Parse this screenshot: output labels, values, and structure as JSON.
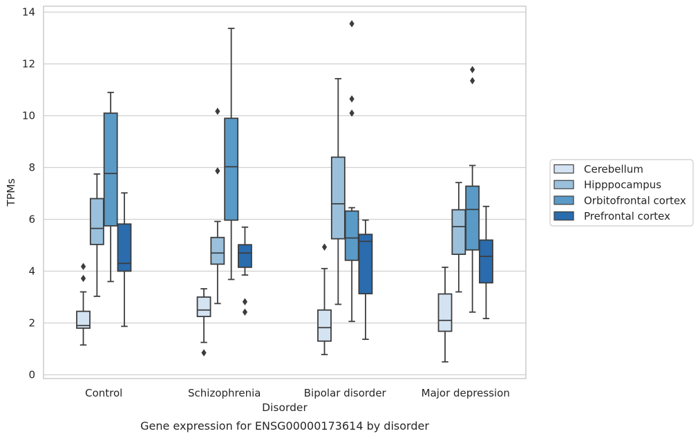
{
  "chart_data": {
    "type": "box",
    "caption": "Gene expression for ENSG00000173614 by disorder",
    "xlabel": "Disorder",
    "ylabel": "TPMs",
    "ylim": [
      -0.1,
      14.2
    ],
    "yticks": [
      0,
      2,
      4,
      6,
      8,
      10,
      12,
      14
    ],
    "grid": "horizontal",
    "legend_position": "right",
    "categories": [
      "Control",
      "Schizophrenia",
      "Bipolar disorder",
      "Major depression"
    ],
    "series": [
      {
        "name": "Cerebellum",
        "color": "#d4e3f1",
        "boxes": [
          {
            "whislo": 1.15,
            "q1": 1.8,
            "med": 1.9,
            "q3": 2.45,
            "whishi": 3.2,
            "fliers": [
              3.72,
              4.18
            ]
          },
          {
            "whislo": 1.25,
            "q1": 2.25,
            "med": 2.5,
            "q3": 3.0,
            "whishi": 3.32,
            "fliers": [
              0.85
            ]
          },
          {
            "whislo": 0.78,
            "q1": 1.3,
            "med": 1.82,
            "q3": 2.5,
            "whishi": 4.1,
            "fliers": [
              4.93
            ]
          },
          {
            "whislo": 0.5,
            "q1": 1.68,
            "med": 2.1,
            "q3": 3.12,
            "whishi": 4.15,
            "fliers": []
          }
        ]
      },
      {
        "name": "Hipppocampus",
        "color": "#9ac0dc",
        "boxes": [
          {
            "whislo": 3.03,
            "q1": 5.03,
            "med": 5.65,
            "q3": 6.8,
            "whishi": 7.75,
            "fliers": []
          },
          {
            "whislo": 2.75,
            "q1": 4.27,
            "med": 4.7,
            "q3": 5.3,
            "whishi": 5.92,
            "fliers": [
              7.87,
              10.17
            ]
          },
          {
            "whislo": 2.72,
            "q1": 5.25,
            "med": 6.6,
            "q3": 8.4,
            "whishi": 11.43,
            "fliers": []
          },
          {
            "whislo": 3.2,
            "q1": 4.65,
            "med": 5.72,
            "q3": 6.37,
            "whishi": 7.42,
            "fliers": []
          }
        ]
      },
      {
        "name": "Orbitofrontal cortex",
        "color": "#5a9ac7",
        "boxes": [
          {
            "whislo": 3.6,
            "q1": 5.75,
            "med": 7.77,
            "q3": 10.1,
            "whishi": 10.9,
            "fliers": []
          },
          {
            "whislo": 3.68,
            "q1": 5.97,
            "med": 8.03,
            "q3": 9.9,
            "whishi": 13.37,
            "fliers": []
          },
          {
            "whislo": 2.06,
            "q1": 4.42,
            "med": 5.28,
            "q3": 6.32,
            "whishi": 6.45,
            "fliers": [
              10.1,
              10.65,
              13.55
            ]
          },
          {
            "whislo": 2.42,
            "q1": 4.82,
            "med": 6.38,
            "q3": 7.28,
            "whishi": 8.08,
            "fliers": [
              11.35,
              11.78
            ]
          }
        ]
      },
      {
        "name": "Prefrontal cortex",
        "color": "#2a6cad",
        "boxes": [
          {
            "whislo": 1.87,
            "q1": 4.0,
            "med": 4.3,
            "q3": 5.82,
            "whishi": 7.02,
            "fliers": []
          },
          {
            "whislo": 3.85,
            "q1": 4.15,
            "med": 4.7,
            "q3": 5.02,
            "whishi": 5.7,
            "fliers": [
              2.42,
              2.82
            ]
          },
          {
            "whislo": 1.37,
            "q1": 3.13,
            "med": 5.15,
            "q3": 5.42,
            "whishi": 5.97,
            "fliers": []
          },
          {
            "whislo": 2.17,
            "q1": 3.55,
            "med": 4.57,
            "q3": 5.2,
            "whishi": 6.5,
            "fliers": []
          }
        ]
      }
    ]
  }
}
